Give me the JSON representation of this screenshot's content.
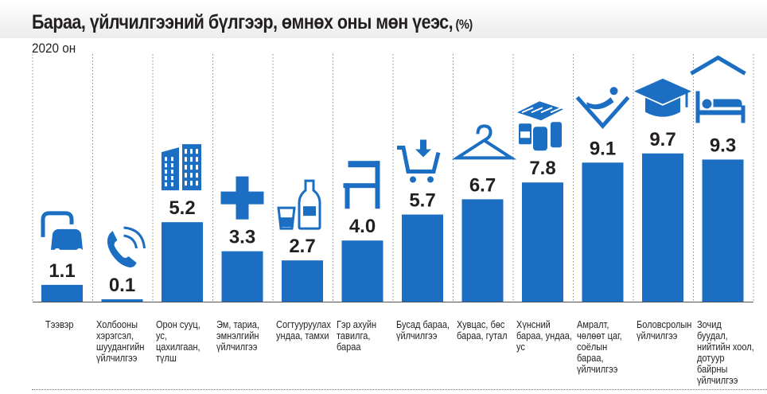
{
  "title": "Бараа, үйлчилгээний бүлгээр, өмнөх оны мөн үеэс,",
  "title_unit": "(%)",
  "subtitle": "2020 он",
  "colors": {
    "bar": "#1b6ec2",
    "icon": "#1b6ec2",
    "text": "#231f20",
    "grid": "#8a8a8a"
  },
  "chart_data": {
    "type": "bar",
    "title": "Бараа, үйлчилгээний бүлгээр, өмнөх оны мөн үеэс, (%)",
    "subtitle": "2020 он",
    "ylim": [
      0,
      11
    ],
    "grid": false,
    "categories": [
      "Тээвэр",
      "Холбооны хэрэгсэл, шуудангийн үйлчилгээ",
      "Орон сууц, ус, цахилгаан, түлш",
      "Эм, тариа, эмнэлгийн үйлчилгээ",
      "Согтууруулах ундаа, тамхи",
      "Гэр ахуйн тавилга, бараа",
      "Бусад бараа, үйлчилгээ",
      "Хувцас, бөс бараа, гутал",
      "Хүнсний бараа, ундаа, ус",
      "Амралт, чөлөөт цаг, соёлын бараа, үйлчилгээ",
      "Боловсролын үйлчилгээ",
      "Зочид буудал, нийтийн хоол, дотуур байрны үйлчилгээ"
    ],
    "values": [
      1.1,
      0.1,
      5.2,
      3.3,
      2.7,
      4.0,
      5.7,
      6.7,
      7.8,
      9.1,
      9.7,
      9.3
    ],
    "value_labels": [
      "1.1",
      "0.1",
      "5.2",
      "3.3",
      "2.7",
      "4.0",
      "5.7",
      "6.7",
      "7.8",
      "9.1",
      "9.7",
      "9.3"
    ],
    "icons": [
      "cars-icon",
      "phone-icon",
      "building-icon",
      "medical-cross-icon",
      "bottle-glass-icon",
      "chair-icon",
      "shopping-cart-icon",
      "hanger-icon",
      "groceries-icon",
      "relaxation-icon",
      "graduation-cap-icon",
      "hotel-bed-icon"
    ]
  }
}
